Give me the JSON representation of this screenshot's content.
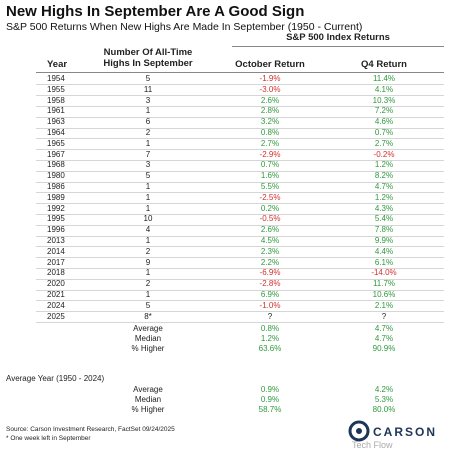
{
  "title": "New Highs In September Are A Good Sign",
  "subtitle": "S&P 500 Returns When New Highs Are Made In September (1950 - Current)",
  "table": {
    "group_header": "S&P 500 Index Returns",
    "columns": [
      "Year",
      "Number Of All-Time Highs In September",
      "October Return",
      "Q4 Return"
    ],
    "rows": [
      [
        "1954",
        "5",
        "-1.9%",
        "11.4%"
      ],
      [
        "1955",
        "11",
        "-3.0%",
        "4.1%"
      ],
      [
        "1958",
        "3",
        "2.6%",
        "10.3%"
      ],
      [
        "1961",
        "1",
        "2.8%",
        "7.2%"
      ],
      [
        "1963",
        "6",
        "3.2%",
        "4.6%"
      ],
      [
        "1964",
        "2",
        "0.8%",
        "0.7%"
      ],
      [
        "1965",
        "1",
        "2.7%",
        "2.7%"
      ],
      [
        "1967",
        "7",
        "-2.9%",
        "-0.2%"
      ],
      [
        "1968",
        "3",
        "0.7%",
        "1.2%"
      ],
      [
        "1980",
        "5",
        "1.6%",
        "8.2%"
      ],
      [
        "1986",
        "1",
        "5.5%",
        "4.7%"
      ],
      [
        "1989",
        "1",
        "-2.5%",
        "1.2%"
      ],
      [
        "1992",
        "1",
        "0.2%",
        "4.3%"
      ],
      [
        "1995",
        "10",
        "-0.5%",
        "5.4%"
      ],
      [
        "1996",
        "4",
        "2.6%",
        "7.8%"
      ],
      [
        "2013",
        "1",
        "4.5%",
        "9.9%"
      ],
      [
        "2014",
        "2",
        "2.3%",
        "4.4%"
      ],
      [
        "2017",
        "9",
        "2.2%",
        "6.1%"
      ],
      [
        "2018",
        "1",
        "-6.9%",
        "-14.0%"
      ],
      [
        "2020",
        "2",
        "-2.8%",
        "11.7%"
      ],
      [
        "2021",
        "1",
        "6.9%",
        "10.6%"
      ],
      [
        "2024",
        "5",
        "-1.0%",
        "2.1%"
      ],
      [
        "2025",
        "8*",
        "?",
        "?"
      ]
    ],
    "summary": [
      [
        "Average",
        "0.8%",
        "4.7%"
      ],
      [
        "Median",
        "1.2%",
        "4.7%"
      ],
      [
        "% Higher",
        "63.6%",
        "90.9%"
      ]
    ]
  },
  "average_year": {
    "title": "Average Year (1950 - 2024)",
    "rows": [
      [
        "Average",
        "0.9%",
        "4.2%"
      ],
      [
        "Median",
        "0.9%",
        "5.3%"
      ],
      [
        "% Higher",
        "58.7%",
        "80.0%"
      ]
    ]
  },
  "source": "Source: Carson Investment Research, FactSet 09/24/2025",
  "footnote": "* One week left in September",
  "logo": "CARSON",
  "watermark": "Tech Flow"
}
